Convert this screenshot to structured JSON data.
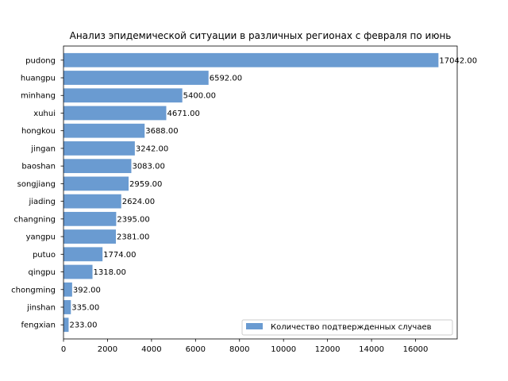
{
  "chart_data": {
    "type": "bar",
    "orientation": "horizontal",
    "title": "Анализ эпидемической ситуации в различных регионах с февраля по июнь",
    "xlabel": "",
    "ylabel": "",
    "xlim": [
      0,
      17894
    ],
    "xticks": [
      0,
      2000,
      4000,
      6000,
      8000,
      10000,
      12000,
      14000,
      16000
    ],
    "categories": [
      "pudong",
      "huangpu",
      "minhang",
      "xuhui",
      "hongkou",
      "jingan",
      "baoshan",
      "songjiang",
      "jiading",
      "changning",
      "yangpu",
      "putuo",
      "qingpu",
      "chongming",
      "jinshan",
      "fengxian"
    ],
    "series": [
      {
        "name": "Количество подтвержденных случаев",
        "color": "#6a9bd1",
        "values": [
          17042,
          6592,
          5400,
          4671,
          3688,
          3242,
          3083,
          2959,
          2624,
          2395,
          2381,
          1774,
          1318,
          392,
          335,
          233
        ],
        "labels": [
          "17042.00",
          "6592.00",
          "5400.00",
          "4671.00",
          "3688.00",
          "3242.00",
          "3083.00",
          "2959.00",
          "2624.00",
          "2395.00",
          "2381.00",
          "1774.00",
          "1318.00",
          "392.00",
          "335.00",
          "233.00"
        ]
      }
    ],
    "legend": "lower-right",
    "grid": false
  }
}
